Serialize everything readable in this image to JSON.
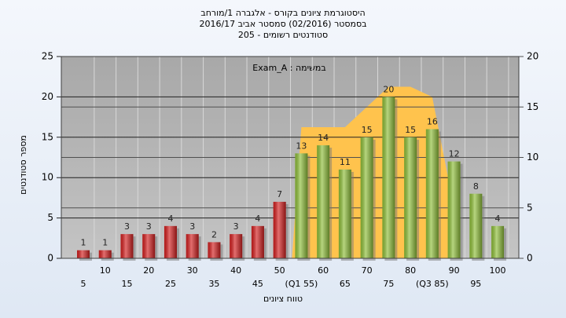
{
  "chart_data": {
    "type": "bar",
    "title": [
      "היסטוגרמת ציונים בקורס - אלגברה 1/מורחב",
      "בסמסטר  (02/2016)  סמסטר אביב 2016/17",
      "סטודנטים רשומים - 205"
    ],
    "annotation": "במשימה : Exam_A",
    "x_label": "טווח ציונים",
    "y_label": "מספר סטודנטים",
    "categories": [
      "5",
      "10",
      "15",
      "20",
      "25",
      "30",
      "35",
      "40",
      "45",
      "50",
      "(Q1 55)",
      "60",
      "65",
      "70",
      "75",
      "80",
      "(Q3 85)",
      "90",
      "95",
      "100"
    ],
    "values": [
      1,
      1,
      3,
      3,
      4,
      3,
      2,
      3,
      4,
      7,
      13,
      14,
      11,
      15,
      20,
      15,
      16,
      12,
      8,
      4
    ],
    "colors": [
      "#d42020",
      "#d42020",
      "#d42020",
      "#d42020",
      "#d42020",
      "#d42020",
      "#d42020",
      "#d42020",
      "#d42020",
      "#d42020",
      "#8fbf3a",
      "#8fbf3a",
      "#8fbf3a",
      "#8fbf3a",
      "#8fbf3a",
      "#8fbf3a",
      "#8fbf3a",
      "#8fbf3a",
      "#8fbf3a",
      "#8fbf3a"
    ],
    "area": {
      "color": "#ffc34d",
      "axis": "y2",
      "values": [
        null,
        null,
        null,
        null,
        null,
        null,
        null,
        null,
        null,
        null,
        13,
        13,
        13,
        15,
        17,
        17,
        16,
        5,
        null,
        null
      ]
    },
    "ylim": [
      0,
      25
    ],
    "yticks": [
      0,
      5,
      10,
      15,
      20,
      25
    ],
    "y2lim": [
      0,
      20
    ],
    "y2ticks": [
      0,
      5,
      10,
      15,
      20
    ],
    "grid": true
  }
}
